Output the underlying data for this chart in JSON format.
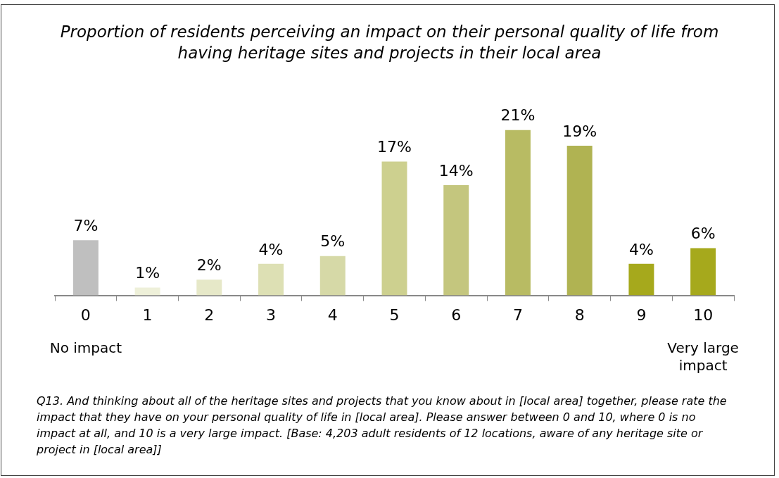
{
  "chart_data": {
    "type": "bar",
    "title": "Proportion of residents perceiving an impact on their personal quality of life from having heritage sites and projects in their local area",
    "categories": [
      "0",
      "1",
      "2",
      "3",
      "4",
      "5",
      "6",
      "7",
      "8",
      "9",
      "10"
    ],
    "values": [
      7,
      1,
      2,
      4,
      5,
      17,
      14,
      21,
      19,
      4,
      6
    ],
    "value_labels": [
      "7%",
      "1%",
      "2%",
      "4%",
      "5%",
      "17%",
      "14%",
      "21%",
      "19%",
      "4%",
      "6%"
    ],
    "colors": [
      "#bfbfbf",
      "#eef0d9",
      "#e6e8c8",
      "#dde0b4",
      "#d6d9a7",
      "#cdd08f",
      "#c4c67e",
      "#b8bb63",
      "#b0b352",
      "#a6a91c",
      "#a6a91c"
    ],
    "grid": false,
    "legend": false,
    "annotations": [
      "No impact",
      "Very large impact",
      "Q13. And thinking about all of the heritage sites and projects that you know about in [local area] together, please rate the impact that they have on your personal quality of life in [local area]. Please answer between 0 and 10, where 0 is no impact at all, and 10 is a very large impact. [Base: 4,203 adult residents of 12 locations, aware of any heritage site or project in [local area]]"
    ]
  }
}
